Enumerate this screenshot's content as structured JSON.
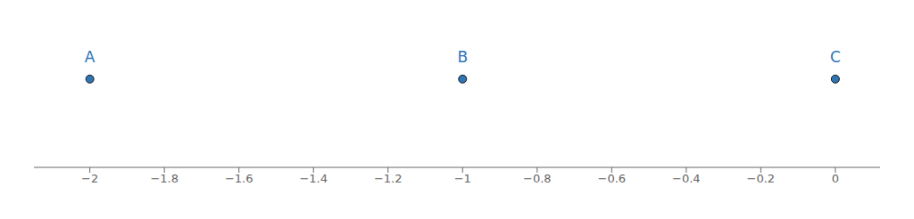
{
  "chart_data": {
    "type": "scatter",
    "x": [
      -2.0,
      -1.0,
      0.0
    ],
    "annotations": [
      "A",
      "B",
      "C"
    ],
    "color": "#2E75B6",
    "xlim": [
      -2.15,
      0.12
    ],
    "xticks": [
      {
        "value": -2.0,
        "label": "−2"
      },
      {
        "value": -1.8,
        "label": "−1.8"
      },
      {
        "value": -1.6,
        "label": "−1.6"
      },
      {
        "value": -1.4,
        "label": "−1.4"
      },
      {
        "value": -1.2,
        "label": "−1.2"
      },
      {
        "value": -1.0,
        "label": "−1"
      },
      {
        "value": -0.8,
        "label": "−0.8"
      },
      {
        "value": -0.6,
        "label": "−0.6"
      },
      {
        "value": -0.4,
        "label": "−0.4"
      },
      {
        "value": -0.2,
        "label": "−0.2"
      },
      0.0
    ],
    "tick_labels": "x"
  }
}
